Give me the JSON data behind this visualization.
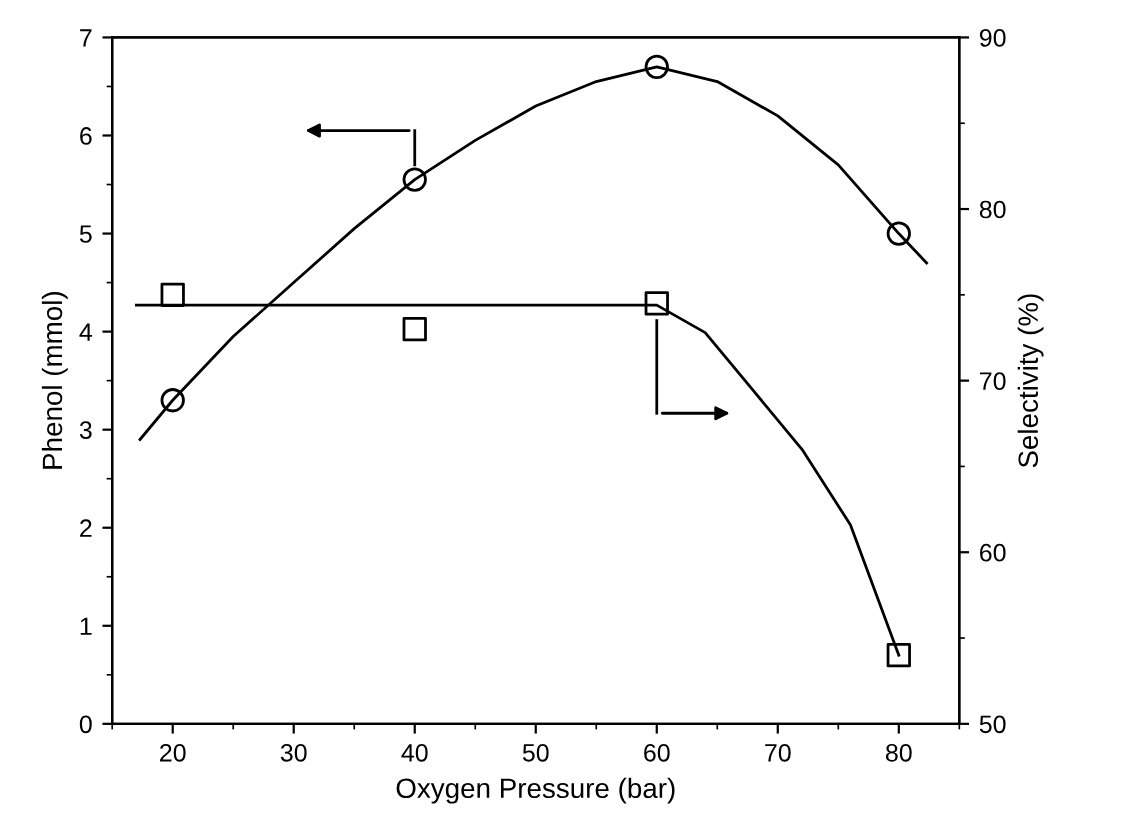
{
  "chart_data": {
    "type": "scatter",
    "xlabel": "Oxygen Pressure (bar)",
    "ylabel": "Phenol (mmol)",
    "y2label": "Selectivity (%)",
    "xlim": [
      15,
      85
    ],
    "xticks": [
      20,
      30,
      40,
      50,
      60,
      70,
      80
    ],
    "ylim": [
      0,
      7
    ],
    "yticks": [
      0,
      1,
      2,
      3,
      4,
      5,
      6,
      7
    ],
    "y2lim": [
      50,
      90
    ],
    "y2ticks": [
      50,
      60,
      70,
      80,
      90
    ],
    "grid": false,
    "legend": false,
    "series": [
      {
        "color": "#000000",
        "marker": "circle",
        "x": [
          20,
          40,
          60,
          80
        ],
        "values": [
          3.3,
          5.55,
          6.7,
          5.0
        ]
      },
      {
        "type": "line",
        "color": "#000000",
        "marker": "none",
        "line_style": "solid",
        "x": [
          17.3,
          20,
          25,
          30,
          35,
          40,
          45,
          50,
          55,
          60,
          65,
          70,
          75,
          80,
          82.3
        ],
        "values": [
          2.9,
          3.3,
          3.95,
          4.5,
          5.05,
          5.55,
          5.95,
          6.3,
          6.55,
          6.7,
          6.55,
          6.2,
          5.7,
          5.0,
          4.7
        ]
      },
      {
        "color": "#000000",
        "marker": "square",
        "axis": "y2",
        "x": [
          20,
          40,
          60,
          80
        ],
        "values": [
          75.0,
          73.0,
          74.5,
          54.0
        ]
      },
      {
        "type": "line",
        "color": "#000000",
        "marker": "none",
        "line_style": "solid",
        "axis": "y2",
        "x": [
          17,
          30,
          45,
          60,
          64,
          68,
          72,
          76,
          80
        ],
        "values": [
          74.4,
          74.4,
          74.4,
          74.4,
          72.8,
          69.4,
          66.0,
          61.6,
          54.0
        ]
      }
    ]
  }
}
